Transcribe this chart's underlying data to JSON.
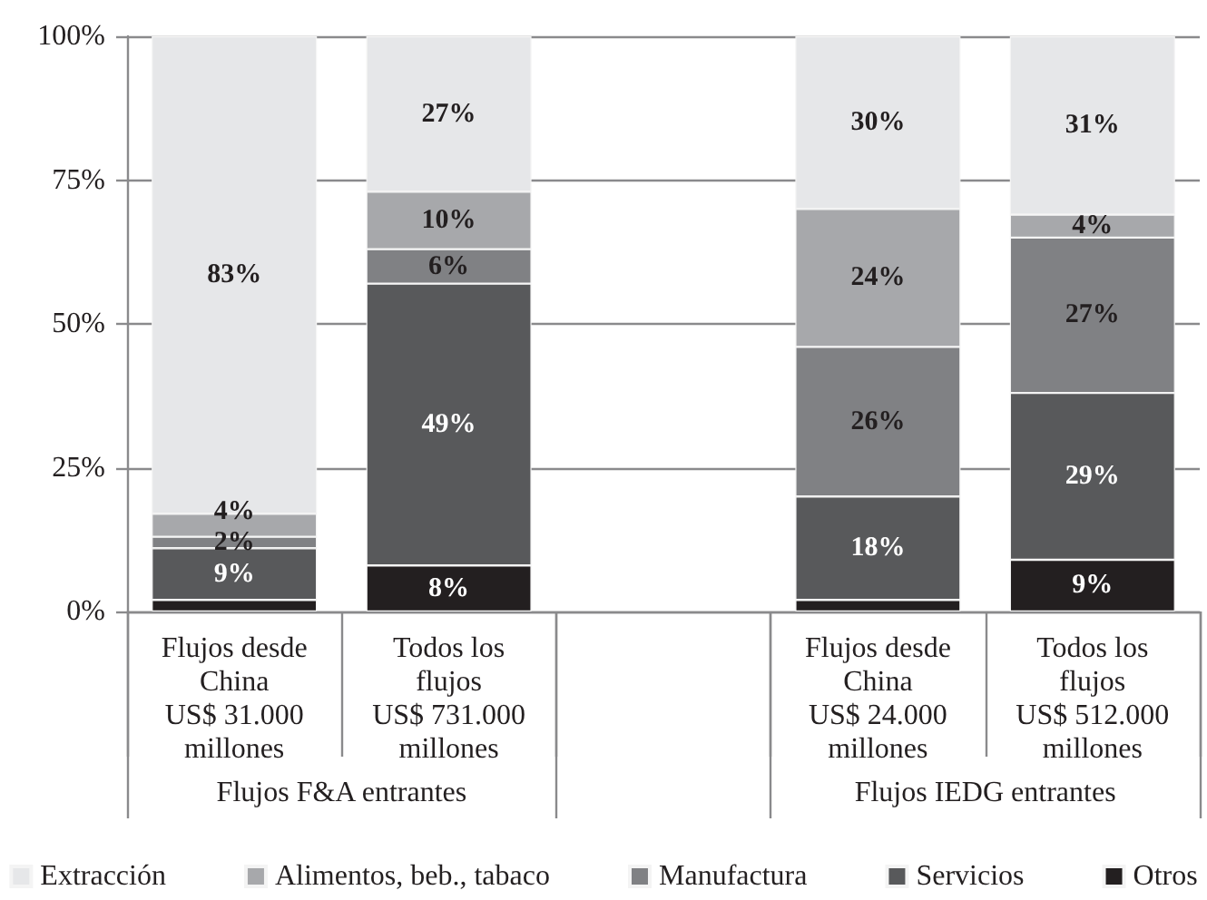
{
  "chart_data": {
    "type": "bar",
    "stacked": true,
    "categories": [
      "Flujos desde\nChina\nUS$ 31.000\nmillones",
      "Todos los\nflujos\nUS$ 731.000\nmillones",
      null,
      "Flujos desde\nChina\nUS$ 24.000\nmillones",
      "Todos los\nflujos\nUS$ 512.000\nmillones"
    ],
    "series": [
      {
        "name": "Otros",
        "color": "#231f20",
        "values": [
          2,
          8,
          null,
          2,
          9
        ],
        "value_labels": [
          null,
          "8%",
          null,
          null,
          "9%"
        ]
      },
      {
        "name": "Servicios",
        "color": "#58595b",
        "values": [
          9,
          49,
          null,
          18,
          29
        ],
        "value_labels": [
          "9%",
          "49%",
          null,
          "18%",
          "29%"
        ]
      },
      {
        "name": "Manufactura",
        "color": "#808184",
        "values": [
          2,
          6,
          null,
          26,
          27
        ],
        "value_labels": [
          "2%",
          "6%",
          null,
          "26%",
          "27%"
        ]
      },
      {
        "name": "Alimentos, beb., tabaco",
        "color": "#a7a8ab",
        "values": [
          4,
          10,
          null,
          24,
          4
        ],
        "value_labels": [
          "4%",
          "10%",
          null,
          "24%",
          "4%"
        ]
      },
      {
        "name": "Extracción",
        "color": "#e6e7e9",
        "values": [
          83,
          27,
          null,
          30,
          31
        ],
        "value_labels": [
          "83%",
          "27%",
          null,
          "30%",
          "31%"
        ]
      }
    ],
    "ylim": [
      0,
      100
    ],
    "yticks": [
      {
        "value": 0,
        "label": "0%"
      },
      {
        "value": 25,
        "label": "25%"
      },
      {
        "value": 50,
        "label": "50%"
      },
      {
        "value": 75,
        "label": "75%"
      },
      {
        "value": 100,
        "label": "100%"
      }
    ],
    "grid": "y",
    "legend": "bottom",
    "annotations": [
      "Flujos F&A entrantes",
      "Flujos IEDG entrantes"
    ]
  }
}
